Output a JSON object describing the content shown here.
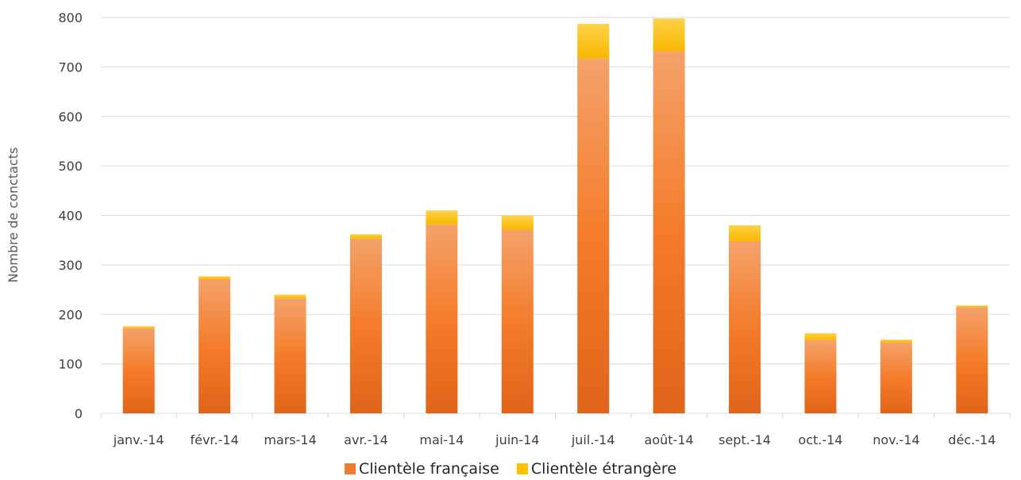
{
  "chart_data": {
    "type": "bar",
    "stacked": true,
    "categories": [
      "janv.-14",
      "févr.-14",
      "mars-14",
      "avr.-14",
      "mai-14",
      "juin-14",
      "juil.-14",
      "août-14",
      "sept.-14",
      "oct.-14",
      "nov.-14",
      "déc.-14"
    ],
    "series": [
      {
        "name": "Clientèle française",
        "color": "#ed7d31",
        "values": [
          172,
          271,
          232,
          353,
          382,
          371,
          717,
          732,
          348,
          148,
          143,
          214
        ]
      },
      {
        "name": "Clientèle étrangère",
        "color": "#ffc000",
        "values": [
          4,
          6,
          8,
          9,
          28,
          29,
          70,
          66,
          32,
          14,
          6,
          4
        ]
      }
    ],
    "title": "",
    "xlabel": "",
    "ylabel": "Nombre de conctacts",
    "ylim": [
      0,
      800
    ],
    "yticks": [
      0,
      100,
      200,
      300,
      400,
      500,
      600,
      700,
      800
    ],
    "grid": true,
    "legend_position": "bottom"
  }
}
